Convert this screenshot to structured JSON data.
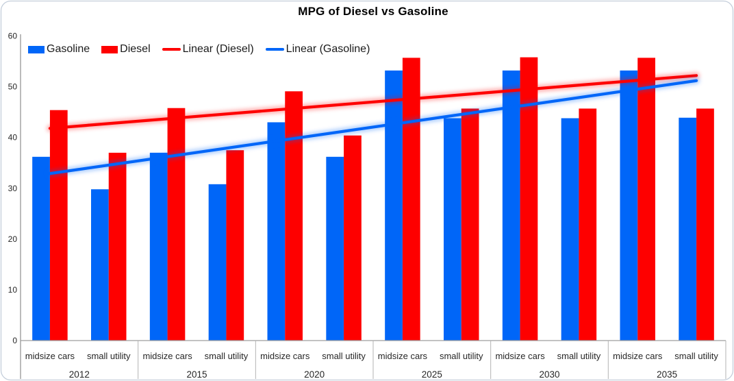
{
  "title": "MPG of Diesel vs Gasoline",
  "legend": [
    {
      "label": "Gasoline",
      "type": "swatch",
      "color": "#0066F8"
    },
    {
      "label": "Diesel",
      "type": "swatch",
      "color": "#FE0000"
    },
    {
      "label": "Linear (Diesel)",
      "type": "line",
      "color": "#FE0000"
    },
    {
      "label": "Linear (Gasoline)",
      "type": "line",
      "color": "#0066F8"
    }
  ],
  "chart_data": {
    "type": "bar",
    "title": "MPG of Diesel vs Gasoline",
    "groups": [
      "2012",
      "2015",
      "2020",
      "2025",
      "2030",
      "2035"
    ],
    "subcategories": [
      "midsize cars",
      "small utility"
    ],
    "series": [
      {
        "name": "Gasoline",
        "color": "#0066F8",
        "values": [
          [
            36.2,
            29.8
          ],
          [
            37.0,
            30.8
          ],
          [
            43.0,
            36.2
          ],
          [
            53.2,
            43.8
          ],
          [
            53.2,
            43.8
          ],
          [
            53.2,
            43.9
          ]
        ]
      },
      {
        "name": "Diesel",
        "color": "#FE0000",
        "values": [
          [
            45.4,
            37.0
          ],
          [
            45.8,
            37.5
          ],
          [
            49.1,
            40.4
          ],
          [
            55.7,
            45.7
          ],
          [
            55.8,
            45.7
          ],
          [
            55.7,
            45.7
          ]
        ]
      }
    ],
    "trendlines": [
      {
        "name": "Linear (Diesel)",
        "color": "#FE0000",
        "start_value": 41.8,
        "end_value": 52.2
      },
      {
        "name": "Linear (Gasoline)",
        "color": "#0066F8",
        "start_value": 32.9,
        "end_value": 51.2
      }
    ],
    "y_axis": {
      "min": 0,
      "max": 60,
      "step": 10,
      "ticks": [
        0,
        10,
        20,
        30,
        40,
        50,
        60
      ]
    },
    "grid": false,
    "legend_position": "top-left-inside",
    "axis_color": "#9E9E9E",
    "label_color": "#262626",
    "border_color": "#C4CEDB"
  }
}
